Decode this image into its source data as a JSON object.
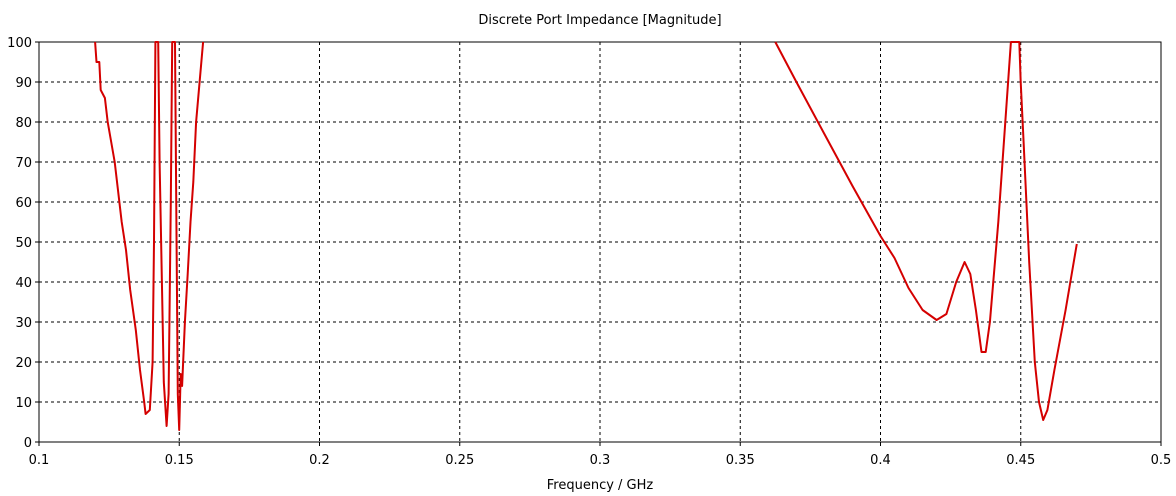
{
  "chart_data": {
    "type": "line",
    "title": "Discrete Port Impedance [Magnitude]",
    "xlabel": "Frequency / GHz",
    "ylabel": "",
    "xlim": [
      0.1,
      0.5
    ],
    "ylim": [
      0,
      100
    ],
    "xticks": [
      0.1,
      0.15,
      0.2,
      0.25,
      0.3,
      0.35,
      0.4,
      0.45,
      0.5
    ],
    "yticks": [
      0,
      10,
      20,
      30,
      40,
      50,
      60,
      70,
      80,
      90,
      100
    ],
    "grid": true,
    "line_color": "#d40000",
    "series": [
      {
        "values": [
          [
            0.12,
            100
          ],
          [
            0.1205,
            95
          ],
          [
            0.1215,
            95
          ],
          [
            0.122,
            88
          ],
          [
            0.1235,
            86
          ],
          [
            0.1245,
            80
          ],
          [
            0.1255,
            76
          ],
          [
            0.127,
            70
          ],
          [
            0.128,
            64
          ],
          [
            0.1295,
            55
          ],
          [
            0.131,
            48
          ],
          [
            0.1325,
            38
          ],
          [
            0.1345,
            28
          ],
          [
            0.136,
            18
          ],
          [
            0.1375,
            10
          ],
          [
            0.138,
            7
          ],
          [
            0.1395,
            8
          ],
          [
            0.1405,
            20
          ],
          [
            0.141,
            50
          ],
          [
            0.1415,
            100
          ],
          [
            0.1425,
            100
          ],
          [
            0.143,
            70
          ],
          [
            0.1438,
            40
          ],
          [
            0.1445,
            15
          ],
          [
            0.1455,
            4
          ],
          [
            0.1462,
            12
          ],
          [
            0.147,
            60
          ],
          [
            0.1475,
            100
          ],
          [
            0.1485,
            100
          ],
          [
            0.149,
            55
          ],
          [
            0.1495,
            12
          ],
          [
            0.15,
            3
          ],
          [
            0.1505,
            17
          ],
          [
            0.151,
            14
          ],
          [
            0.152,
            30
          ],
          [
            0.153,
            42
          ],
          [
            0.154,
            55
          ],
          [
            0.155,
            65
          ],
          [
            0.156,
            80
          ],
          [
            0.157,
            88
          ],
          [
            0.1585,
            100
          ]
        ]
      },
      {
        "values": [
          [
            0.3625,
            100
          ],
          [
            0.37,
            90
          ],
          [
            0.38,
            77
          ],
          [
            0.39,
            64
          ],
          [
            0.4,
            51.5
          ],
          [
            0.405,
            46
          ],
          [
            0.41,
            38.5
          ],
          [
            0.415,
            33
          ],
          [
            0.42,
            30.5
          ],
          [
            0.4235,
            32
          ],
          [
            0.427,
            40
          ],
          [
            0.43,
            45
          ],
          [
            0.432,
            42
          ],
          [
            0.434,
            33
          ],
          [
            0.436,
            22.5
          ],
          [
            0.4375,
            22.5
          ],
          [
            0.439,
            30
          ],
          [
            0.442,
            55
          ],
          [
            0.445,
            85
          ],
          [
            0.4465,
            100
          ],
          [
            0.4495,
            100
          ],
          [
            0.45,
            90
          ],
          [
            0.451,
            75
          ],
          [
            0.453,
            45
          ],
          [
            0.455,
            20
          ],
          [
            0.4565,
            10
          ],
          [
            0.458,
            5.5
          ],
          [
            0.4595,
            8
          ],
          [
            0.462,
            18
          ],
          [
            0.466,
            33
          ],
          [
            0.47,
            49.5
          ]
        ]
      }
    ]
  }
}
